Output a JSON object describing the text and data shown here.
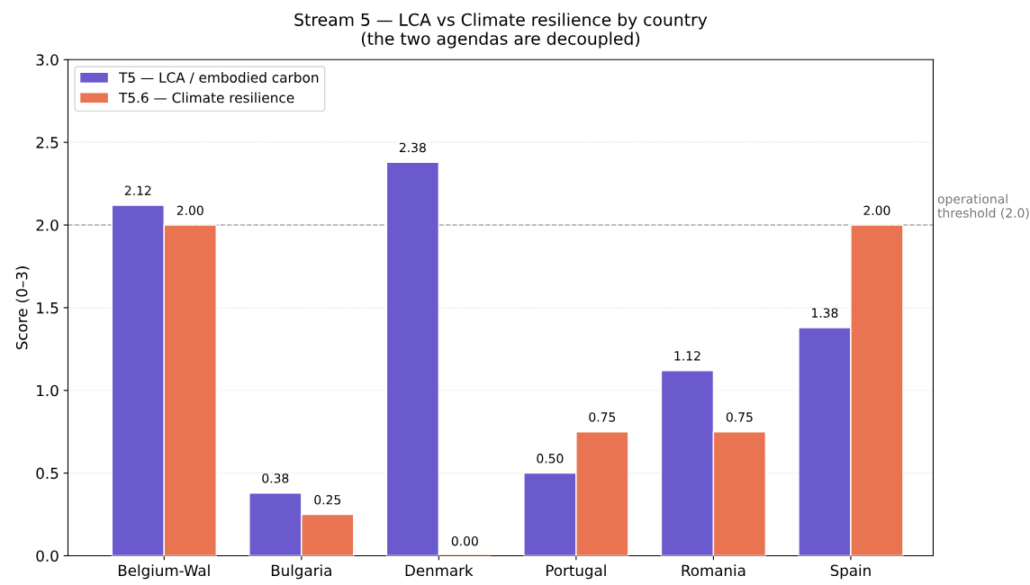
{
  "chart_data": {
    "type": "bar",
    "title": "Stream 5 — LCA vs Climate resilience by country\n(the two agendas are decoupled)",
    "ylabel": "Score (0–3)",
    "categories": [
      "Belgium-Wal",
      "Bulgaria",
      "Denmark",
      "Portugal",
      "Romania",
      "Spain"
    ],
    "series": [
      {
        "name": "T5 — LCA / embodied carbon",
        "color": "#6a5acd",
        "values": [
          2.12,
          0.38,
          2.38,
          0.5,
          1.12,
          1.38
        ],
        "value_labels": [
          "2.12",
          "0.38",
          "2.38",
          "0.50",
          "1.12",
          "1.38"
        ]
      },
      {
        "name": "T5.6 — Climate resilience",
        "color": "#e97451",
        "values": [
          2.0,
          0.25,
          0.0,
          0.75,
          0.75,
          2.0
        ],
        "value_labels": [
          "2.00",
          "0.25",
          "0.00",
          "0.75",
          "0.75",
          "2.00"
        ]
      }
    ],
    "ylim": [
      0,
      3
    ],
    "yticks": [
      {
        "value": 0,
        "label": "0.0"
      },
      {
        "value": 0.5,
        "label": "0.5"
      },
      {
        "value": 1,
        "label": "1.0"
      },
      {
        "value": 1.5,
        "label": "1.5"
      },
      {
        "value": 2,
        "label": "2.0"
      },
      {
        "value": 2.5,
        "label": "2.5"
      },
      {
        "value": 3,
        "label": "3.0"
      }
    ],
    "ref_lines": [
      {
        "axis": "y",
        "value": 2.0,
        "label": "operational\nthreshold (2.0)",
        "color": "#aaaaaa",
        "line_style": "dashed"
      }
    ],
    "grid": "y",
    "legend": "top left"
  }
}
